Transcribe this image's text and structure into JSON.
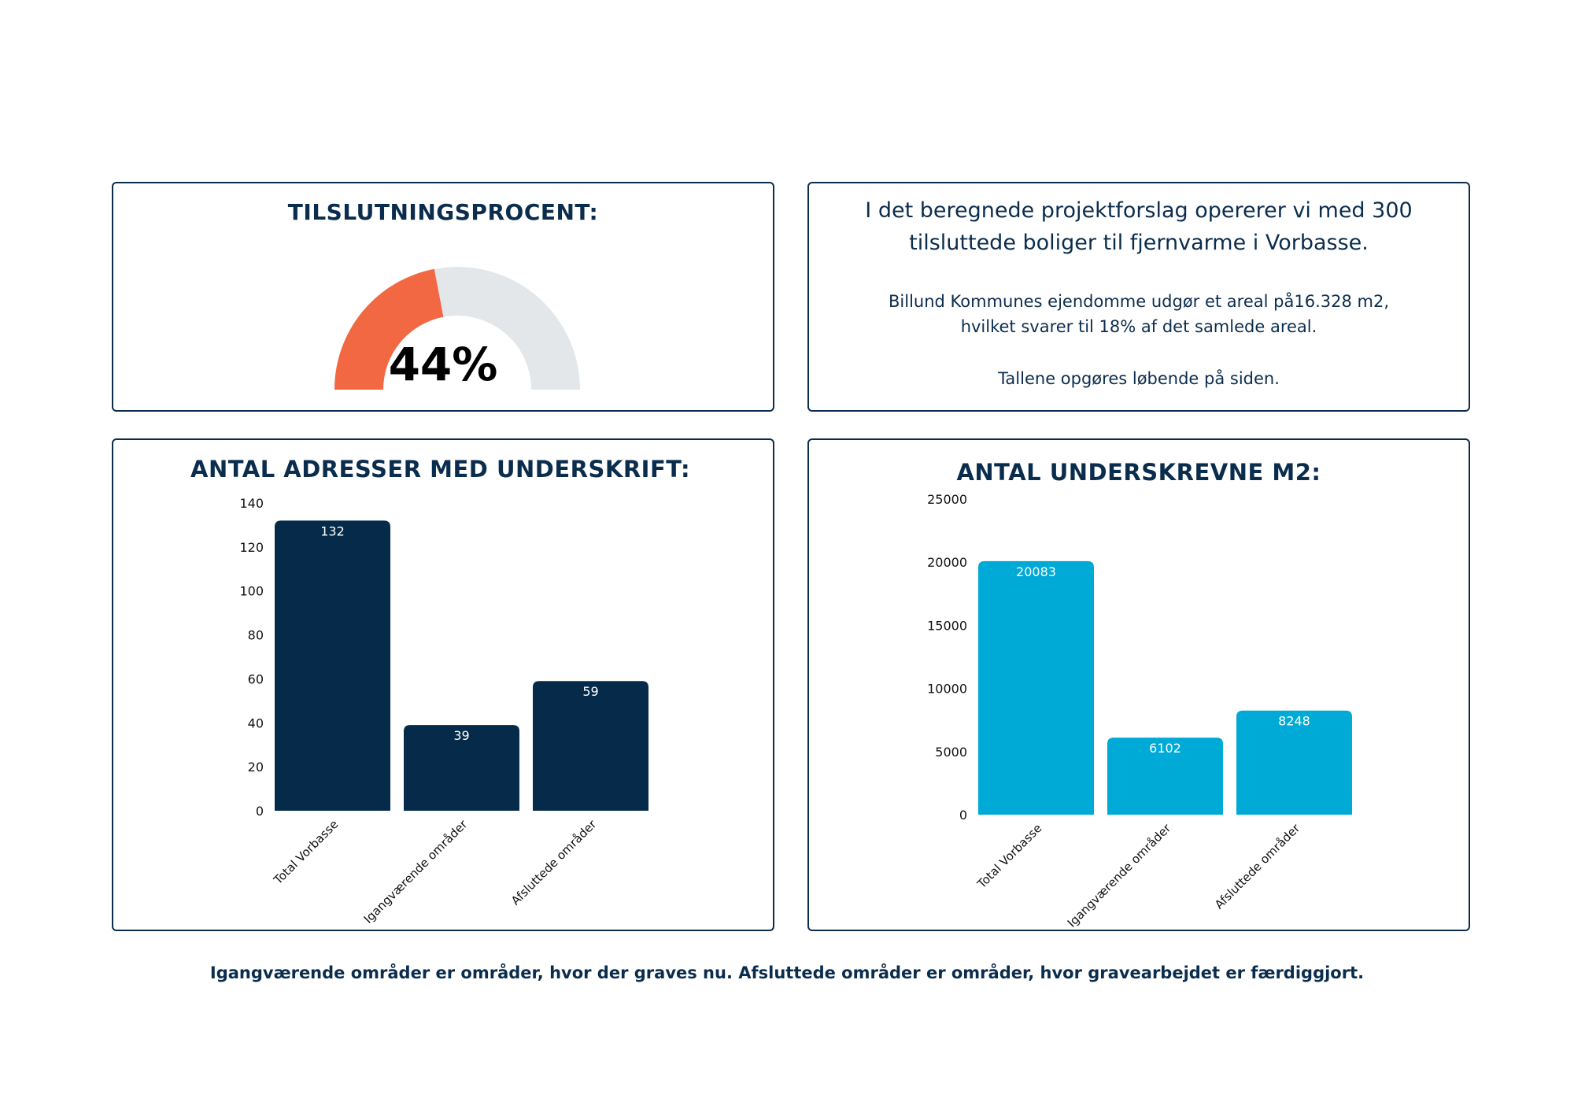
{
  "gauge": {
    "title": "TILSLUTNINGSPROCENT:",
    "value_label": "44%",
    "fraction": 0.44,
    "color_filled": "#f26842",
    "color_empty": "#e4e7ea"
  },
  "info": {
    "lead": "I det beregnede projektforslag opererer vi med 300 tilsluttede boliger til fjernvarme i Vorbasse.",
    "paragraph2_line1": "Billund Kommunes ejendomme udgør et areal på16.328 m2,",
    "paragraph2_line2": "hvilket svarer til 18% af det samlede areal.",
    "paragraph3": "Tallene opgøres løbende på siden."
  },
  "footer_note": "Igangværende områder er områder, hvor der graves nu. Afsluttede områder er områder, hvor gravearbejdet er færdiggjort.",
  "chart_data": [
    {
      "type": "bar",
      "title": "ANTAL ADRESSER MED UNDERSKRIFT:",
      "categories": [
        "Total Vorbasse",
        "Igangværende områder",
        "Afsluttede områder"
      ],
      "values": [
        132,
        39,
        59
      ],
      "data_labels": [
        "132",
        "39",
        "59"
      ],
      "ylim": [
        0,
        140
      ],
      "yticks": [
        "0",
        "20",
        "40",
        "60",
        "80",
        "100",
        "120",
        "140"
      ],
      "ytick_values": [
        0,
        20,
        40,
        60,
        80,
        100,
        120,
        140
      ],
      "grid": false,
      "color": "#062b4a"
    },
    {
      "type": "bar",
      "title": "ANTAL UNDERSKREVNE M2:",
      "categories": [
        "Total Vorbasse",
        "Igangværende områder",
        "Afsluttede områder"
      ],
      "values": [
        20083,
        6102,
        8248
      ],
      "data_labels": [
        "20083",
        "6102",
        "8248"
      ],
      "ylim": [
        0,
        25000
      ],
      "yticks": [
        "0",
        "5000",
        "10000",
        "15000",
        "20000",
        "25000"
      ],
      "ytick_values": [
        0,
        5000,
        10000,
        15000,
        20000,
        25000
      ],
      "grid": false,
      "color": "#00aad6"
    }
  ]
}
